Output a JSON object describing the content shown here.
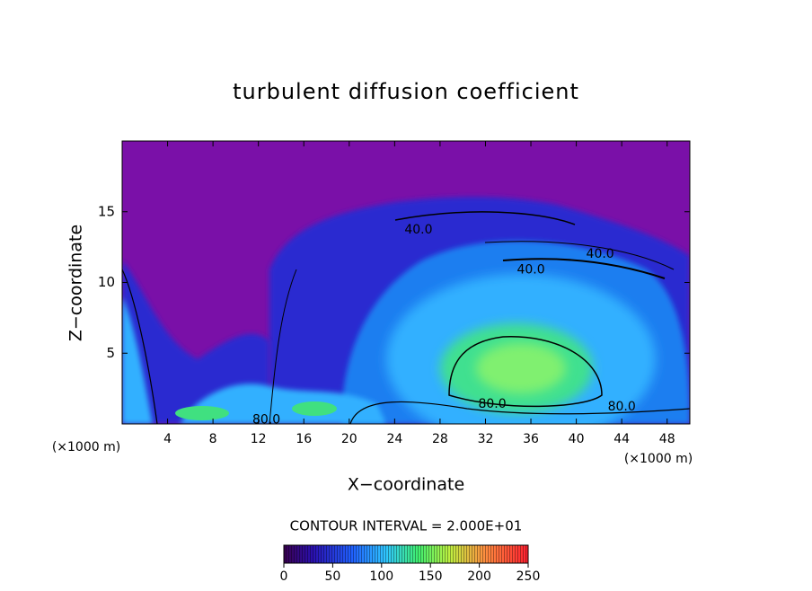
{
  "chart_data": {
    "type": "contour",
    "title": "turbulent diffusion coefficient",
    "x_label": "X−coordinate",
    "y_label": "Z−coordinate",
    "x_unit": "(×1000 m)",
    "y_unit": "(×1000 m)",
    "xlim": [
      0,
      50
    ],
    "xticks": [
      4,
      8,
      12,
      16,
      20,
      24,
      28,
      32,
      36,
      40,
      44,
      48
    ],
    "ylim": [
      0,
      20
    ],
    "yticks": [
      5,
      10,
      15
    ],
    "annotations": [
      {
        "text": "40.0",
        "x": 26.1,
        "y": 13.7
      },
      {
        "text": "40.0",
        "x": 42.1,
        "y": 12.0
      },
      {
        "text": "40.0",
        "x": 36.0,
        "y": 10.9
      },
      {
        "text": "80.0",
        "x": 32.6,
        "y": 1.4
      },
      {
        "text": "80.0",
        "x": 44.0,
        "y": 1.2
      },
      {
        "text": "80.0",
        "x": 12.7,
        "y": 0.3
      }
    ],
    "colorbar": {
      "label": "CONTOUR INTERVAL = 2.000E+01",
      "lim": [
        0,
        250
      ],
      "ticks": [
        0,
        50,
        100,
        150,
        200,
        250
      ]
    }
  }
}
